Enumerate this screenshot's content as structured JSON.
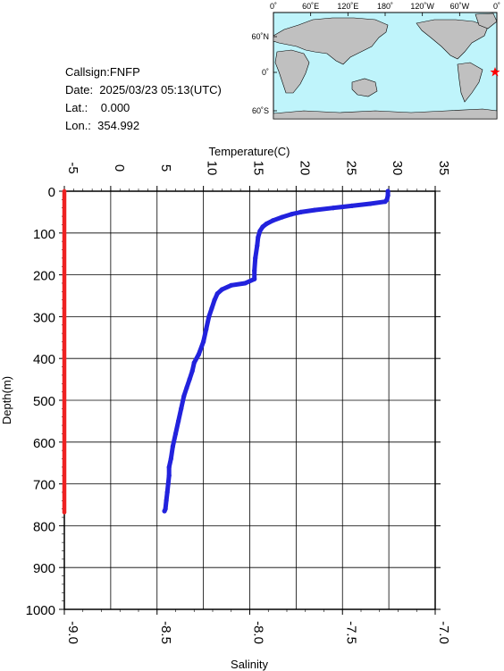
{
  "info": {
    "callsign": "Callsign:FNFP",
    "date": "Date:  2025/03/23 05:13(UTC)",
    "lat": "Lat.:    0.000",
    "lon": "Lon.:  354.992"
  },
  "map": {
    "top_labels": [
      "0˚",
      "60˚E",
      "120˚E",
      "180˚",
      "120˚W",
      "60˚W",
      "0˚"
    ],
    "left_labels": [
      "60˚N",
      "0˚",
      "60˚S"
    ],
    "marker_color": "#ff0000",
    "ocean_color": "#bff4fb",
    "land_color": "#c0c0c0"
  },
  "chart_data": {
    "type": "line",
    "ylabel": "Depth(m)",
    "x_top_label": "Temperature(C)",
    "x_bottom_label": "Salinity",
    "ylim": [
      0,
      1000
    ],
    "y_inverted": true,
    "temperature_range": [
      -5,
      35
    ],
    "salinity_range": [
      -9.0,
      -7.0
    ],
    "temperature_ticks": [
      "-5",
      "0",
      "5",
      "10",
      "15",
      "20",
      "25",
      "30",
      "35"
    ],
    "salinity_ticks": [
      "-9.0",
      "-8.5",
      "-8.0",
      "-7.5",
      "-7.0"
    ],
    "depth_ticks": [
      "0",
      "100",
      "200",
      "300",
      "400",
      "500",
      "600",
      "700",
      "800",
      "900",
      "1000"
    ],
    "grid": true,
    "series": [
      {
        "name": "Temperature",
        "axis": "top",
        "color": "#2222dd",
        "points": [
          [
            29.9,
            0
          ],
          [
            29.9,
            10
          ],
          [
            29.8,
            20
          ],
          [
            29.6,
            25
          ],
          [
            28.0,
            30
          ],
          [
            26.0,
            35
          ],
          [
            24.0,
            40
          ],
          [
            22.0,
            45
          ],
          [
            20.5,
            50
          ],
          [
            19.5,
            55
          ],
          [
            18.5,
            62
          ],
          [
            17.5,
            70
          ],
          [
            16.8,
            78
          ],
          [
            16.4,
            85
          ],
          [
            16.1,
            95
          ],
          [
            15.9,
            110
          ],
          [
            15.8,
            130
          ],
          [
            15.6,
            160
          ],
          [
            15.5,
            190
          ],
          [
            15.5,
            210
          ],
          [
            14.5,
            220
          ],
          [
            13.0,
            225
          ],
          [
            12.0,
            235
          ],
          [
            11.5,
            245
          ],
          [
            11.2,
            260
          ],
          [
            10.9,
            280
          ],
          [
            10.6,
            300
          ],
          [
            10.3,
            330
          ],
          [
            10.0,
            360
          ],
          [
            9.5,
            390
          ],
          [
            9.0,
            410
          ],
          [
            8.8,
            430
          ],
          [
            8.5,
            450
          ],
          [
            8.2,
            470
          ],
          [
            7.9,
            490
          ],
          [
            7.6,
            520
          ],
          [
            7.3,
            550
          ],
          [
            7.0,
            580
          ],
          [
            6.7,
            610
          ],
          [
            6.5,
            640
          ],
          [
            6.3,
            660
          ],
          [
            6.3,
            680
          ],
          [
            6.2,
            700
          ],
          [
            6.1,
            720
          ],
          [
            6.0,
            740
          ],
          [
            5.9,
            760
          ],
          [
            5.8,
            765
          ]
        ]
      },
      {
        "name": "Salinity",
        "axis": "bottom",
        "color": "#ee2222",
        "points": [
          [
            -9.0,
            0
          ],
          [
            -9.0,
            100
          ],
          [
            -9.0,
            200
          ],
          [
            -9.0,
            300
          ],
          [
            -9.0,
            400
          ],
          [
            -9.0,
            500
          ],
          [
            -9.0,
            600
          ],
          [
            -9.0,
            700
          ],
          [
            -9.0,
            768
          ]
        ]
      }
    ]
  }
}
